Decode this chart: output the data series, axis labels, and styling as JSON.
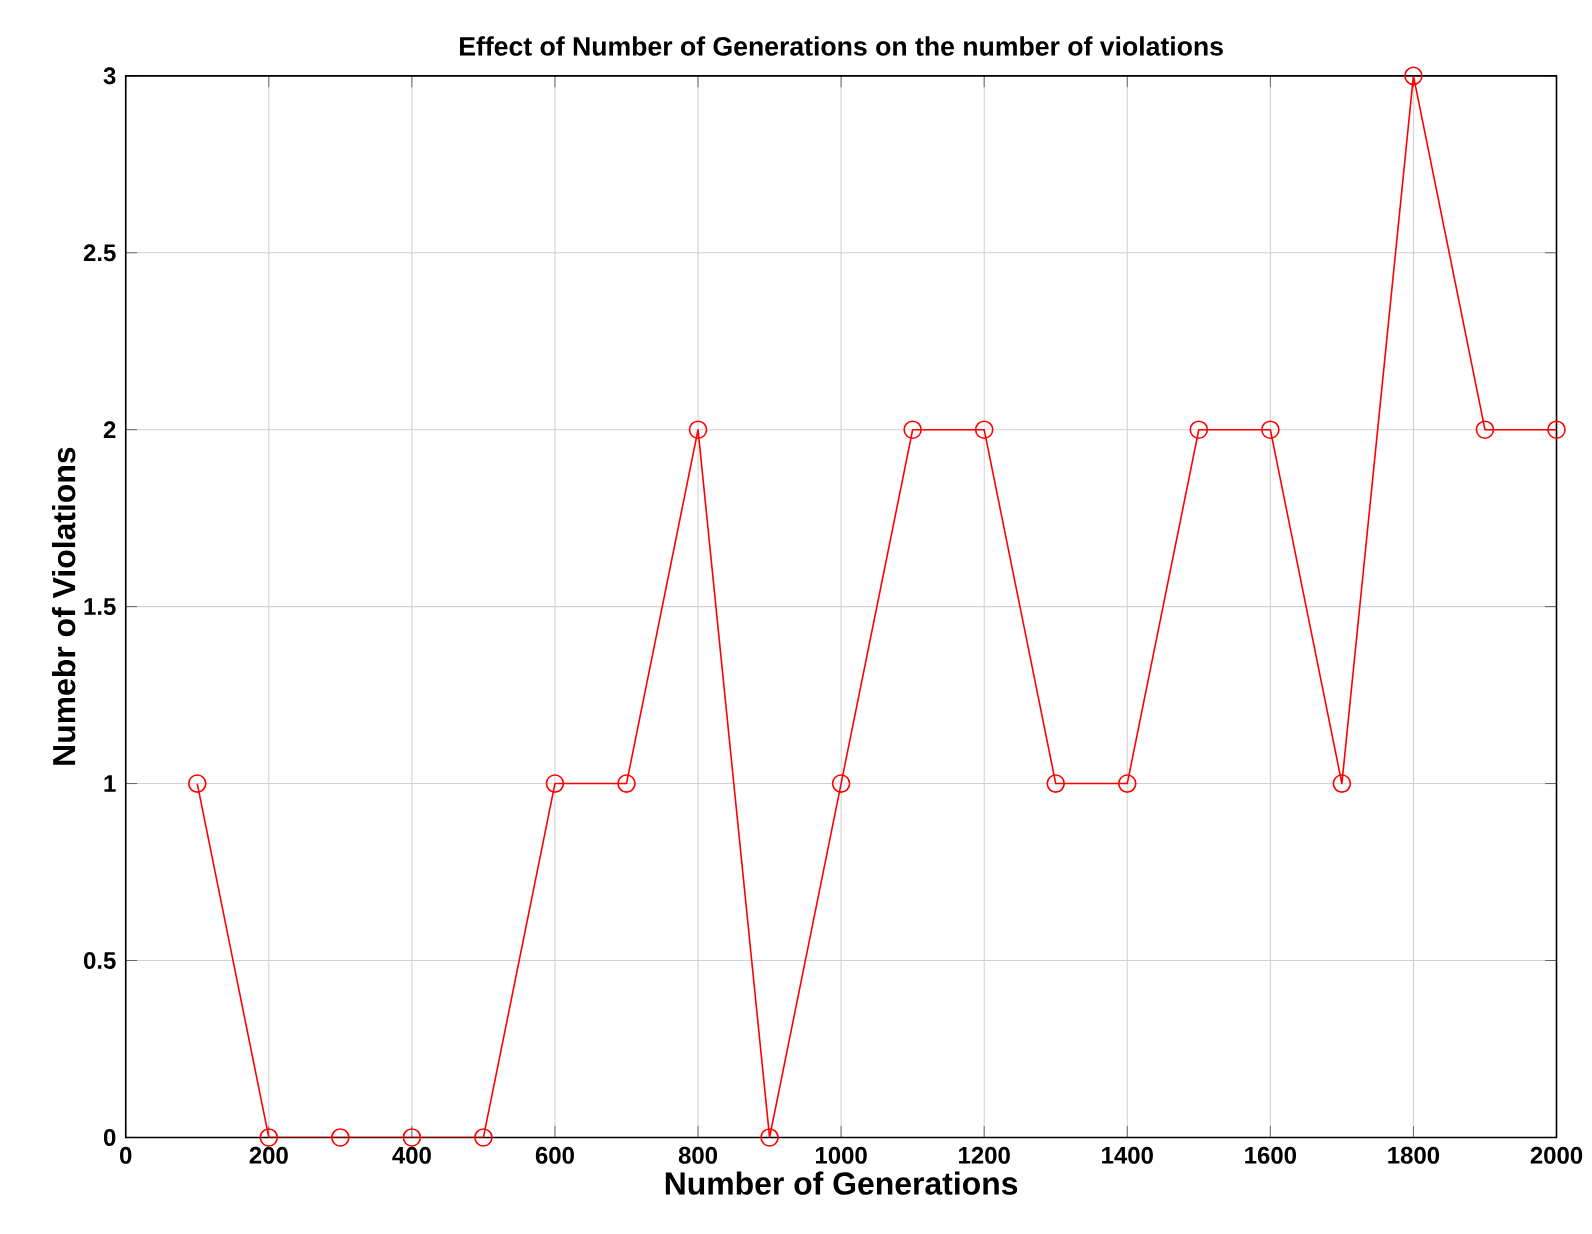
{
  "chart_data": {
    "type": "line",
    "title": "Effect of Number of Generations on the number of violations",
    "xlabel": "Number of Generations",
    "ylabel": "Numebr of Violations",
    "x": [
      100,
      200,
      300,
      400,
      500,
      600,
      700,
      800,
      900,
      1000,
      1100,
      1200,
      1300,
      1400,
      1500,
      1600,
      1700,
      1800,
      1900,
      2000
    ],
    "series": [
      {
        "color": "#ff0000",
        "values": [
          1,
          0,
          0,
          0,
          0,
          1,
          1,
          2,
          0,
          1,
          2,
          2,
          1,
          1,
          2,
          2,
          1,
          3,
          2,
          2
        ]
      }
    ],
    "xlim": [
      0,
      2000
    ],
    "ylim": [
      0,
      3
    ],
    "xticks": [
      0,
      200,
      400,
      600,
      800,
      1000,
      1200,
      1400,
      1600,
      1800,
      2000
    ],
    "yticks": [
      0,
      0.5,
      1,
      1.5,
      2,
      2.5,
      3
    ],
    "grid": true,
    "marker": "circle",
    "line_style": "solid"
  }
}
